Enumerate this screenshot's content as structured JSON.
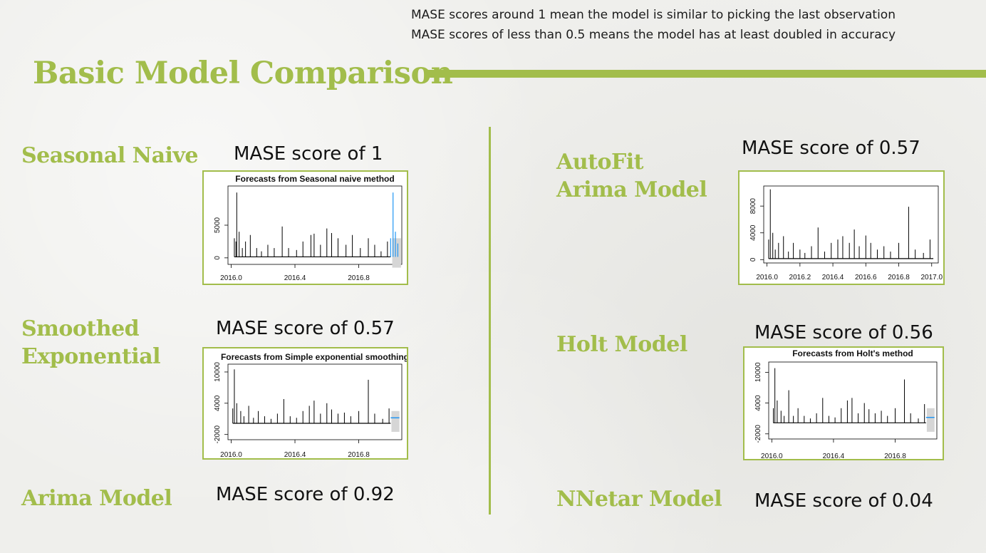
{
  "colors": {
    "accent": "#a2bd4b",
    "forecast": "#2196f3",
    "interval": "#d6d6d6",
    "series": "#000000"
  },
  "notes": [
    "MASE scores around 1 mean the model is similar to picking the last observation",
    "MASE scores of less than  0.5 means  the model has at least doubled in accuracy"
  ],
  "title": "Basic Model Comparison",
  "models": {
    "seasonal_naive": {
      "name": "Seasonal Naive",
      "score": "MASE score of 1"
    },
    "smoothed": {
      "name_line1": "Smoothed",
      "name_line2": "Exponential",
      "score": "MASE score of 0.57"
    },
    "arima": {
      "name": "Arima Model",
      "score": "MASE score of 0.92"
    },
    "autofit": {
      "name_line1": "AutoFit",
      "name_line2": "Arima Model",
      "score": "MASE score of 0.57"
    },
    "holt": {
      "name": "Holt Model",
      "score": "MASE score of 0.56"
    },
    "nnetar": {
      "name": "NNetar Model",
      "score": "MASE score of 0.04"
    }
  },
  "chart_data": [
    {
      "type": "line",
      "id": "seasonal_naive",
      "title": "Forecasts from Seasonal naive method",
      "xlim": [
        2015.98,
        2017.07
      ],
      "ylim": [
        -1000,
        11000
      ],
      "x_ticks": [
        2016.0,
        2016.4,
        2016.8
      ],
      "x_tick_labels": [
        "2016.0",
        "2016.4",
        "2016.8"
      ],
      "y_ticks": [
        0,
        5000
      ],
      "y_tick_labels": [
        "0",
        "5000"
      ],
      "series_spikes": [
        [
          2016.02,
          3000
        ],
        [
          2016.03,
          2500
        ],
        [
          2016.035,
          10000
        ],
        [
          2016.05,
          4000
        ],
        [
          2016.07,
          1500
        ],
        [
          2016.09,
          2500
        ],
        [
          2016.12,
          3500
        ],
        [
          2016.16,
          1500
        ],
        [
          2016.19,
          1000
        ],
        [
          2016.23,
          2000
        ],
        [
          2016.27,
          1500
        ],
        [
          2016.32,
          4800
        ],
        [
          2016.36,
          1500
        ],
        [
          2016.41,
          1200
        ],
        [
          2016.45,
          2500
        ],
        [
          2016.5,
          3500
        ],
        [
          2016.52,
          3700
        ],
        [
          2016.56,
          2000
        ],
        [
          2016.6,
          4500
        ],
        [
          2016.63,
          3800
        ],
        [
          2016.67,
          3000
        ],
        [
          2016.72,
          2000
        ],
        [
          2016.76,
          3500
        ],
        [
          2016.81,
          1500
        ],
        [
          2016.86,
          3000
        ],
        [
          2016.9,
          2000
        ],
        [
          2016.94,
          1000
        ],
        [
          2016.98,
          2500
        ]
      ],
      "forecast_spikes": [
        [
          2017.0,
          3000
        ],
        [
          2017.015,
          10000
        ],
        [
          2017.03,
          4000
        ],
        [
          2017.045,
          2200
        ]
      ],
      "forecast_start": 2017.0,
      "interval": [
        2017.01,
        2017.065,
        -1500,
        3000
      ]
    },
    {
      "type": "line",
      "id": "autofit",
      "xlim": [
        2015.98,
        2017.04
      ],
      "ylim": [
        -500,
        11000
      ],
      "x_ticks": [
        2016.0,
        2016.2,
        2016.4,
        2016.6,
        2016.8,
        2017.0
      ],
      "x_tick_labels": [
        "2016.0",
        "2016.2",
        "2016.4",
        "2016.6",
        "2016.8",
        "2017.0"
      ],
      "y_ticks": [
        0,
        4000,
        8000
      ],
      "y_tick_labels": [
        "0",
        "4000",
        "8000"
      ],
      "series_spikes": [
        [
          2016.01,
          3000
        ],
        [
          2016.02,
          10500
        ],
        [
          2016.035,
          4000
        ],
        [
          2016.05,
          1500
        ],
        [
          2016.07,
          2500
        ],
        [
          2016.1,
          3500
        ],
        [
          2016.13,
          1200
        ],
        [
          2016.16,
          2500
        ],
        [
          2016.2,
          1500
        ],
        [
          2016.23,
          1000
        ],
        [
          2016.27,
          2000
        ],
        [
          2016.31,
          4800
        ],
        [
          2016.35,
          1200
        ],
        [
          2016.39,
          2500
        ],
        [
          2016.43,
          3000
        ],
        [
          2016.46,
          3500
        ],
        [
          2016.5,
          2500
        ],
        [
          2016.53,
          4500
        ],
        [
          2016.56,
          2000
        ],
        [
          2016.6,
          3600
        ],
        [
          2016.63,
          2500
        ],
        [
          2016.67,
          1500
        ],
        [
          2016.71,
          2000
        ],
        [
          2016.75,
          1200
        ],
        [
          2016.8,
          2500
        ],
        [
          2016.86,
          7900
        ],
        [
          2016.9,
          1500
        ],
        [
          2016.95,
          1000
        ],
        [
          2016.99,
          3000
        ]
      ]
    },
    {
      "type": "line",
      "id": "smoothed",
      "title": "Forecasts from Simple exponential smoothing",
      "xlim": [
        2015.98,
        2017.07
      ],
      "ylim": [
        -3000,
        11500
      ],
      "x_ticks": [
        2016.0,
        2016.4,
        2016.8
      ],
      "x_tick_labels": [
        "2016.0",
        "2016.4",
        "2016.8"
      ],
      "y_ticks": [
        -2000,
        4000,
        10000
      ],
      "y_tick_labels": [
        "-2000",
        "4000",
        "10000"
      ],
      "series_spikes": [
        [
          2016.01,
          3000
        ],
        [
          2016.02,
          10500
        ],
        [
          2016.035,
          4000
        ],
        [
          2016.06,
          2500
        ],
        [
          2016.08,
          1500
        ],
        [
          2016.11,
          3500
        ],
        [
          2016.14,
          1200
        ],
        [
          2016.17,
          2500
        ],
        [
          2016.21,
          1500
        ],
        [
          2016.25,
          1000
        ],
        [
          2016.29,
          2000
        ],
        [
          2016.33,
          4800
        ],
        [
          2016.37,
          1500
        ],
        [
          2016.41,
          1200
        ],
        [
          2016.45,
          2500
        ],
        [
          2016.49,
          3500
        ],
        [
          2016.52,
          4500
        ],
        [
          2016.56,
          2000
        ],
        [
          2016.6,
          4000
        ],
        [
          2016.63,
          2800
        ],
        [
          2016.67,
          2000
        ],
        [
          2016.71,
          2200
        ],
        [
          2016.75,
          1500
        ],
        [
          2016.8,
          2500
        ],
        [
          2016.86,
          8500
        ],
        [
          2016.9,
          2000
        ],
        [
          2016.95,
          1000
        ],
        [
          2016.99,
          3000
        ]
      ],
      "forecast_start": 2017.0,
      "forecast_level": 1200,
      "interval": [
        2017.005,
        2017.055,
        -1500,
        2500
      ]
    },
    {
      "type": "line",
      "id": "holt",
      "title": "Forecasts from Holt's method",
      "xlim": [
        2015.98,
        2017.07
      ],
      "ylim": [
        -3000,
        12000
      ],
      "x_ticks": [
        2016.0,
        2016.4,
        2016.8
      ],
      "x_tick_labels": [
        "2016.0",
        "2016.4",
        "2016.8"
      ],
      "y_ticks": [
        -2000,
        4000,
        10000
      ],
      "y_tick_labels": [
        "-2000",
        "4000",
        "10000"
      ],
      "series_spikes": [
        [
          2016.01,
          3000
        ],
        [
          2016.02,
          10800
        ],
        [
          2016.035,
          4500
        ],
        [
          2016.06,
          2500
        ],
        [
          2016.08,
          1500
        ],
        [
          2016.11,
          6500
        ],
        [
          2016.14,
          1500
        ],
        [
          2016.17,
          3000
        ],
        [
          2016.21,
          1500
        ],
        [
          2016.25,
          1000
        ],
        [
          2016.29,
          2000
        ],
        [
          2016.33,
          5000
        ],
        [
          2016.37,
          1500
        ],
        [
          2016.41,
          1200
        ],
        [
          2016.45,
          3000
        ],
        [
          2016.49,
          4500
        ],
        [
          2016.52,
          5000
        ],
        [
          2016.56,
          2000
        ],
        [
          2016.6,
          4000
        ],
        [
          2016.63,
          2800
        ],
        [
          2016.67,
          2000
        ],
        [
          2016.71,
          2500
        ],
        [
          2016.75,
          1500
        ],
        [
          2016.8,
          3000
        ],
        [
          2016.86,
          8600
        ],
        [
          2016.9,
          2000
        ],
        [
          2016.95,
          1000
        ],
        [
          2016.99,
          3800
        ]
      ],
      "forecast_start": 2017.0,
      "forecast_level": 1200,
      "interval": [
        2017.005,
        2017.055,
        -1600,
        3000
      ]
    }
  ]
}
